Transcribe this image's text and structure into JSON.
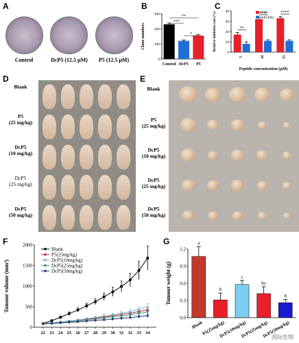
{
  "panels": {
    "A": {
      "letter": "A",
      "labels": [
        "Control",
        "DcP5 (12.5 μM)",
        "P5 (12.5 μM)"
      ]
    },
    "B": {
      "letter": "B"
    },
    "C": {
      "letter": "C"
    },
    "D": {
      "letter": "D",
      "rows": [
        "Blank",
        "P5\n(25 mg/kg)",
        "DcP5\n(10 mg/kg)",
        "DcP5\n(25 mg/kg)",
        "DcP5\n(50 mg/kg)"
      ]
    },
    "E": {
      "letter": "E",
      "rows": [
        "Blank",
        "P5\n(25 mg/kg)",
        "DcP5\n(10 mg/kg)",
        "DcP5\n(25 mg/kg)",
        "DcP5\n(50 mg/kg)"
      ]
    },
    "F": {
      "letter": "F"
    },
    "G": {
      "letter": "G"
    }
  },
  "watermark": "国际生物",
  "chart_data": [
    {
      "id": "B",
      "type": "bar",
      "categories": [
        "Control",
        "DcP5",
        "P5"
      ],
      "values": [
        230,
        120,
        155
      ],
      "errors": [
        8,
        6,
        6
      ],
      "colors": [
        "#000000",
        "#1f6fd6",
        "#e8202a"
      ],
      "ylabel": "Clone numbers",
      "ylim": [
        0,
        300
      ],
      "yticks": [
        0,
        100,
        200,
        300
      ],
      "significance": [
        {
          "pair": [
            0,
            1
          ],
          "label": "***"
        },
        {
          "pair": [
            0,
            2
          ],
          "label": "**"
        },
        {
          "pair": [
            1,
            2
          ],
          "label": "*"
        }
      ]
    },
    {
      "id": "C",
      "type": "bar",
      "categories": [
        "5",
        "10",
        "15"
      ],
      "xlabel": "Peptide concentration (μM)",
      "ylabel": "Relative inhibition rate (%)",
      "ylim": [
        0,
        40
      ],
      "yticks": [
        0,
        10,
        20,
        30,
        40
      ],
      "series": [
        {
          "name": "NTC",
          "color": "#e8202a",
          "values": [
            17,
            32,
            33
          ],
          "errors": [
            2,
            1.5,
            1.5
          ]
        },
        {
          "name": "shFGFR2",
          "color": "#1f6fd6",
          "values": [
            8,
            11,
            11
          ],
          "errors": [
            2,
            1,
            1
          ]
        }
      ],
      "significance": [
        "**",
        "****",
        "****"
      ],
      "legend": "top-left"
    },
    {
      "id": "F",
      "type": "line",
      "x": [
        22,
        23,
        24,
        25,
        26,
        27,
        28,
        29,
        30,
        31,
        32,
        33,
        34
      ],
      "xticks": [
        "22",
        "23",
        "24",
        "25",
        "26",
        "27",
        "28",
        "29",
        "30",
        "31",
        "32",
        "33",
        "34"
      ],
      "ylabel": "Tumour volume (mm³)",
      "ylim": [
        0,
        2000
      ],
      "yticks": [
        0,
        500,
        1000,
        1500,
        2000
      ],
      "legend": "top-left",
      "series": [
        {
          "name": "Blank",
          "color": "#000000",
          "marker": "circle",
          "values": [
            90,
            160,
            240,
            330,
            420,
            520,
            620,
            740,
            860,
            990,
            1150,
            1380,
            1680
          ],
          "errors": [
            10,
            20,
            30,
            40,
            50,
            60,
            70,
            90,
            110,
            130,
            160,
            220,
            290
          ]
        },
        {
          "name": "P5(25mg/kg)",
          "color": "#c4292c",
          "marker": "square",
          "values": [
            85,
            100,
            120,
            140,
            165,
            190,
            220,
            250,
            280,
            310,
            340,
            380,
            420
          ],
          "errors": [
            10,
            12,
            15,
            18,
            20,
            25,
            28,
            32,
            35,
            40,
            45,
            55,
            65
          ]
        },
        {
          "name": "DcP5(10mg/kg)",
          "color": "#7fb0d8",
          "marker": "triangle",
          "values": [
            88,
            105,
            125,
            150,
            175,
            205,
            240,
            270,
            300,
            340,
            380,
            430,
            500
          ],
          "errors": [
            10,
            13,
            16,
            20,
            24,
            28,
            32,
            36,
            42,
            48,
            55,
            65,
            80
          ]
        },
        {
          "name": "DcP5(25mg/kg)",
          "color": "#3e8f7a",
          "marker": "triangle-down",
          "values": [
            84,
            98,
            115,
            135,
            155,
            178,
            200,
            225,
            250,
            275,
            300,
            335,
            370
          ],
          "errors": [
            9,
            11,
            14,
            16,
            19,
            22,
            26,
            30,
            33,
            37,
            42,
            48,
            55
          ]
        },
        {
          "name": "DcP5(50mg/kg)",
          "color": "#24356f",
          "marker": "diamond",
          "values": [
            82,
            92,
            105,
            118,
            132,
            148,
            165,
            180,
            198,
            215,
            235,
            258,
            280
          ],
          "errors": [
            8,
            10,
            12,
            14,
            16,
            18,
            20,
            22,
            25,
            28,
            32,
            36,
            40
          ]
        }
      ]
    },
    {
      "id": "G",
      "type": "bar",
      "categories": [
        "Blank",
        "P5(25mg/kg)",
        "DcP5(10mg/kg)",
        "DcP5(25mg/kg)",
        "DcP5(50mg/kg)"
      ],
      "values": [
        1.07,
        0.31,
        0.58,
        0.42,
        0.26
      ],
      "errors": [
        0.17,
        0.12,
        0.07,
        0.12,
        0.06
      ],
      "letters": [
        "a",
        "b",
        "c",
        "bc",
        "b"
      ],
      "colors": [
        "#c0392b",
        "#e8202a",
        "#7ccdf0",
        "#e8202a",
        "#1a1ad0"
      ],
      "ylabel": "Tumour weight (g)",
      "ylim": [
        0,
        1.2
      ],
      "yticks": [
        0.0,
        0.3,
        0.6,
        0.9,
        1.2
      ]
    }
  ]
}
